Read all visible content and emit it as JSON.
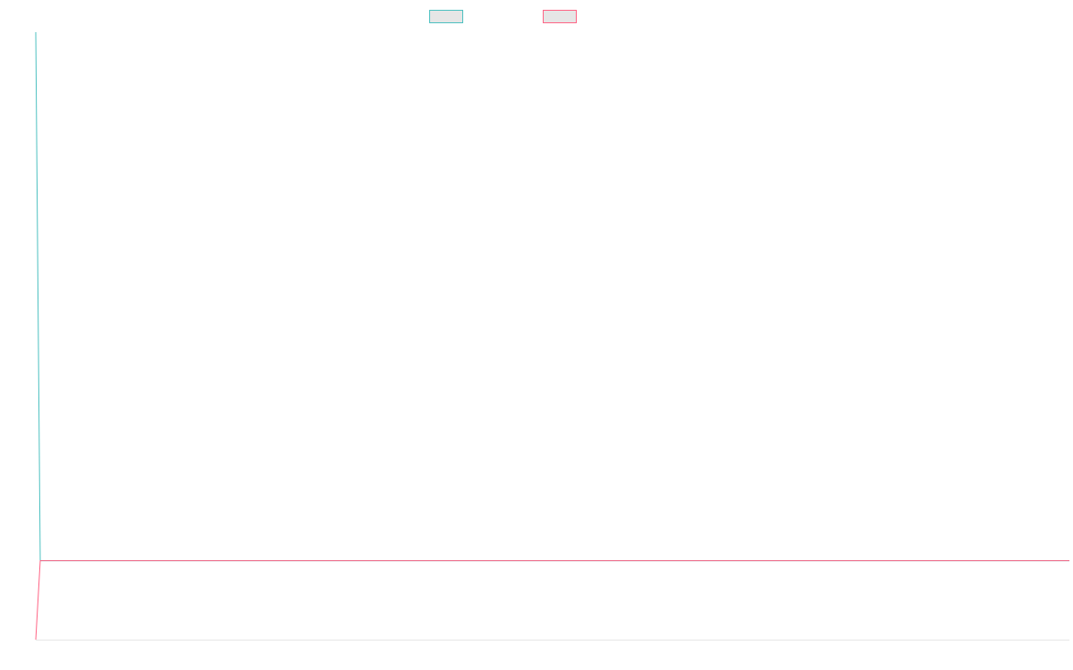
{
  "chart_data": {
    "type": "line",
    "title": "",
    "xlabel": "",
    "ylabel": "",
    "legend_position": "top-center",
    "grid": false,
    "x_points": 3,
    "series": [
      {
        "name": "",
        "color": "#4bc0c0",
        "fill": "#e6e6e6",
        "values": [
          1.0,
          0.13,
          0.13
        ]
      },
      {
        "name": "",
        "color": "#ff6384",
        "fill": "#e6e6e6",
        "values": [
          0.0,
          0.13,
          0.13
        ]
      }
    ],
    "ylim": [
      0,
      1
    ],
    "axis_color": "#e6e6e6"
  }
}
